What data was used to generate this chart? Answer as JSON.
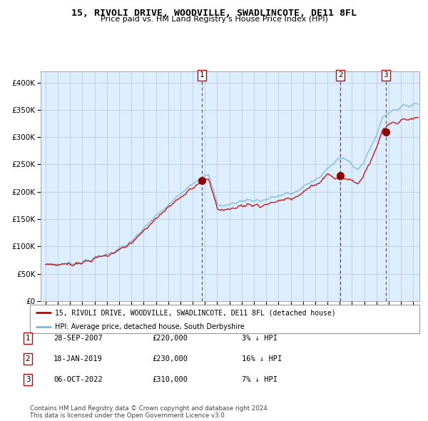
{
  "title": "15, RIVOLI DRIVE, WOODVILLE, SWADLINCOTE, DE11 8FL",
  "subtitle": "Price paid vs. HM Land Registry's House Price Index (HPI)",
  "legend_line1": "15, RIVOLI DRIVE, WOODVILLE, SWADLINCOTE, DE11 8FL (detached house)",
  "legend_line2": "HPI: Average price, detached house, South Derbyshire",
  "sale_events": [
    {
      "label": "1",
      "date": "2007-09-28",
      "price": 220000,
      "x_year": 2007.74,
      "pct": "3% ↓ HPI"
    },
    {
      "label": "2",
      "date": "2019-01-18",
      "price": 230000,
      "x_year": 2019.05,
      "pct": "16% ↓ HPI"
    },
    {
      "label": "3",
      "date": "2022-10-06",
      "price": 310000,
      "x_year": 2022.76,
      "pct": "7% ↓ HPI"
    }
  ],
  "sale_dates_display": [
    "28-SEP-2007",
    "18-JAN-2019",
    "06-OCT-2022"
  ],
  "sale_prices_display": [
    "£220,000",
    "£230,000",
    "£310,000"
  ],
  "hpi_color": "#7ab8d9",
  "price_color": "#cc0000",
  "dot_color": "#8b0000",
  "vline_color": "#cc0000",
  "bg_color": "#ddeeff",
  "grid_color": "#aaaacc",
  "ylim": [
    0,
    420000
  ],
  "xlim_start": 1994.6,
  "xlim_end": 2025.5,
  "footer": "Contains HM Land Registry data © Crown copyright and database right 2024.\nThis data is licensed under the Open Government Licence v3.0.",
  "yticks": [
    0,
    50000,
    100000,
    150000,
    200000,
    250000,
    300000,
    350000,
    400000
  ],
  "ytick_labels": [
    "£0",
    "£50K",
    "£100K",
    "£150K",
    "£200K",
    "£250K",
    "£300K",
    "£350K",
    "£400K"
  ],
  "xticks": [
    1995,
    1996,
    1997,
    1998,
    1999,
    2000,
    2001,
    2002,
    2003,
    2004,
    2005,
    2006,
    2007,
    2008,
    2009,
    2010,
    2011,
    2012,
    2013,
    2014,
    2015,
    2016,
    2017,
    2018,
    2019,
    2020,
    2021,
    2022,
    2023,
    2024,
    2025
  ],
  "dot_values": [
    220000,
    230000,
    310000
  ]
}
